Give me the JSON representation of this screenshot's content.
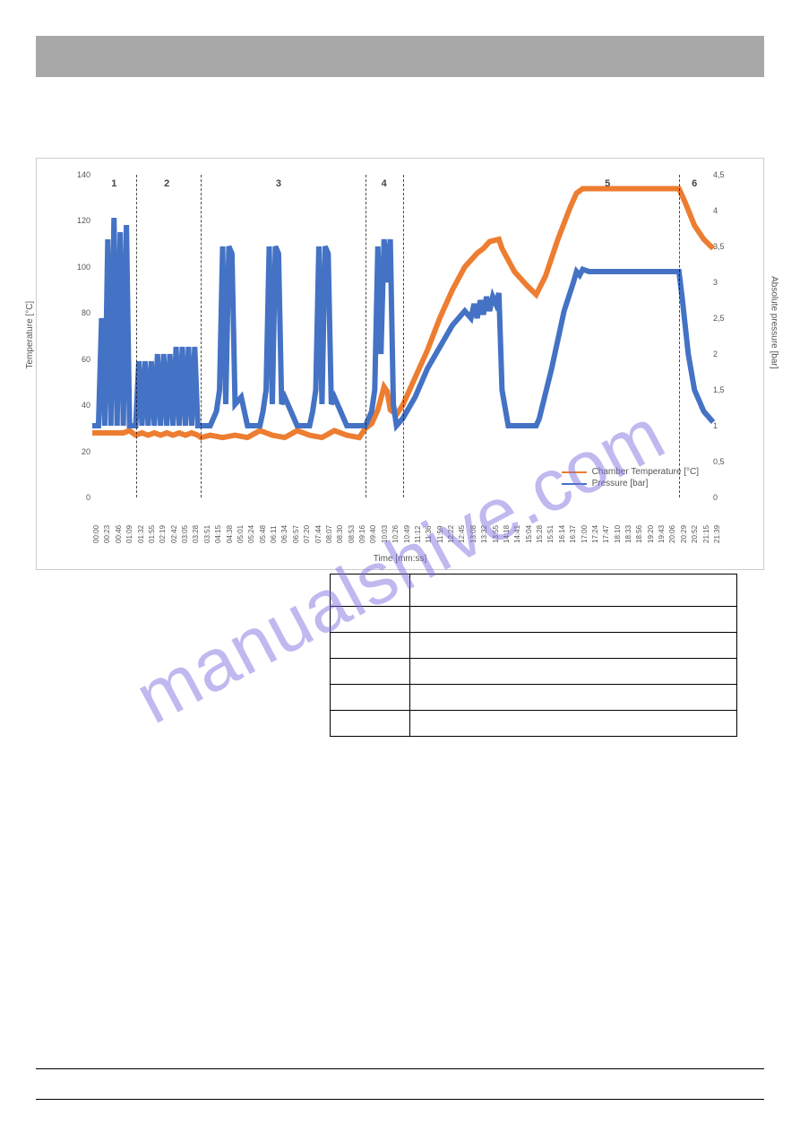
{
  "chart": {
    "title": "",
    "y_left_label": "Temperature [°C]",
    "y_right_label": "Absolute pressure [bar]",
    "x_label": "Time [mm:ss]",
    "y_left_ticks": [
      0,
      20,
      40,
      60,
      80,
      100,
      120,
      140
    ],
    "y_left_min": 0,
    "y_left_max": 140,
    "y_right_ticks": [
      0,
      0.5,
      1,
      1.5,
      2,
      2.5,
      3,
      3.5,
      4,
      4.5
    ],
    "y_right_min": 0,
    "y_right_max": 4.5,
    "x_ticks": [
      "00:00",
      "00:23",
      "00:46",
      "01:09",
      "01:32",
      "01:55",
      "02:19",
      "02:42",
      "03:05",
      "03:28",
      "03:51",
      "04:15",
      "04:38",
      "05:01",
      "05:24",
      "05:48",
      "06:11",
      "06:34",
      "06:57",
      "07:20",
      "07:44",
      "08:07",
      "08:30",
      "08:53",
      "09:16",
      "09:40",
      "10:03",
      "10:26",
      "10:49",
      "11:12",
      "11:36",
      "11:59",
      "12:22",
      "12:45",
      "13:08",
      "13:32",
      "13:55",
      "14:18",
      "14:41",
      "15:04",
      "15:28",
      "15:51",
      "16:14",
      "16:37",
      "17:00",
      "17:24",
      "17:47",
      "18:10",
      "18:33",
      "18:56",
      "19:20",
      "19:43",
      "20:06",
      "20:29",
      "20:52",
      "21:15",
      "21:39"
    ],
    "phases": [
      {
        "label": "1",
        "x": 0.035,
        "divider_after": 0.07
      },
      {
        "label": "2",
        "x": 0.12,
        "divider_after": 0.175
      },
      {
        "label": "3",
        "x": 0.3,
        "divider_after": 0.44
      },
      {
        "label": "4",
        "x": 0.47,
        "divider_after": 0.5
      },
      {
        "label": "5",
        "x": 0.83,
        "divider_after": 0.945
      },
      {
        "label": "6",
        "x": 0.97
      }
    ],
    "series": [
      {
        "name": "Chamber Temperature [°C]",
        "color": "#ed7d31",
        "axis": "left",
        "points": [
          [
            0,
            28
          ],
          [
            0.05,
            28
          ],
          [
            0.06,
            29
          ],
          [
            0.07,
            27
          ],
          [
            0.08,
            28
          ],
          [
            0.09,
            27
          ],
          [
            0.1,
            28
          ],
          [
            0.11,
            27
          ],
          [
            0.12,
            28
          ],
          [
            0.13,
            27
          ],
          [
            0.14,
            28
          ],
          [
            0.15,
            27
          ],
          [
            0.16,
            28
          ],
          [
            0.17,
            27
          ],
          [
            0.175,
            26
          ],
          [
            0.19,
            27
          ],
          [
            0.21,
            26
          ],
          [
            0.23,
            27
          ],
          [
            0.25,
            26
          ],
          [
            0.27,
            29
          ],
          [
            0.29,
            27
          ],
          [
            0.31,
            26
          ],
          [
            0.33,
            29
          ],
          [
            0.35,
            27
          ],
          [
            0.37,
            26
          ],
          [
            0.39,
            29
          ],
          [
            0.41,
            27
          ],
          [
            0.43,
            26
          ],
          [
            0.44,
            30
          ],
          [
            0.45,
            32
          ],
          [
            0.46,
            38
          ],
          [
            0.47,
            48
          ],
          [
            0.475,
            46
          ],
          [
            0.48,
            38
          ],
          [
            0.49,
            36
          ],
          [
            0.5,
            40
          ],
          [
            0.52,
            52
          ],
          [
            0.54,
            64
          ],
          [
            0.56,
            78
          ],
          [
            0.58,
            90
          ],
          [
            0.6,
            100
          ],
          [
            0.62,
            106
          ],
          [
            0.63,
            108
          ],
          [
            0.64,
            111
          ],
          [
            0.655,
            112
          ],
          [
            0.66,
            108
          ],
          [
            0.68,
            98
          ],
          [
            0.7,
            92
          ],
          [
            0.715,
            88
          ],
          [
            0.73,
            96
          ],
          [
            0.75,
            112
          ],
          [
            0.77,
            126
          ],
          [
            0.78,
            132
          ],
          [
            0.79,
            134
          ],
          [
            0.945,
            134
          ],
          [
            0.955,
            128
          ],
          [
            0.97,
            118
          ],
          [
            0.985,
            112
          ],
          [
            1,
            108
          ]
        ]
      },
      {
        "name": "Pressure [bar]",
        "color": "#4472c4",
        "axis": "right",
        "points": [
          [
            0,
            1.0
          ],
          [
            0.01,
            1.0
          ],
          [
            0.015,
            2.5
          ],
          [
            0.02,
            1.0
          ],
          [
            0.025,
            3.6
          ],
          [
            0.03,
            1.0
          ],
          [
            0.035,
            3.9
          ],
          [
            0.04,
            1.0
          ],
          [
            0.045,
            3.7
          ],
          [
            0.05,
            1.0
          ],
          [
            0.055,
            3.8
          ],
          [
            0.06,
            1.0
          ],
          [
            0.07,
            1.0
          ],
          [
            0.075,
            1.9
          ],
          [
            0.08,
            1.0
          ],
          [
            0.085,
            1.9
          ],
          [
            0.09,
            1.0
          ],
          [
            0.095,
            1.9
          ],
          [
            0.1,
            1.0
          ],
          [
            0.105,
            2.0
          ],
          [
            0.11,
            1.0
          ],
          [
            0.115,
            2.0
          ],
          [
            0.12,
            1.0
          ],
          [
            0.125,
            2.0
          ],
          [
            0.13,
            1.0
          ],
          [
            0.135,
            2.1
          ],
          [
            0.14,
            1.0
          ],
          [
            0.145,
            2.1
          ],
          [
            0.15,
            1.0
          ],
          [
            0.155,
            2.1
          ],
          [
            0.16,
            1.0
          ],
          [
            0.165,
            2.1
          ],
          [
            0.17,
            1.0
          ],
          [
            0.175,
            1.0
          ],
          [
            0.19,
            1.0
          ],
          [
            0.2,
            1.2
          ],
          [
            0.205,
            1.5
          ],
          [
            0.21,
            3.5
          ],
          [
            0.215,
            1.3
          ],
          [
            0.22,
            3.5
          ],
          [
            0.225,
            3.4
          ],
          [
            0.23,
            1.3
          ],
          [
            0.24,
            1.4
          ],
          [
            0.245,
            1.2
          ],
          [
            0.25,
            1.0
          ],
          [
            0.27,
            1.0
          ],
          [
            0.275,
            1.2
          ],
          [
            0.28,
            1.5
          ],
          [
            0.285,
            3.5
          ],
          [
            0.29,
            1.3
          ],
          [
            0.295,
            3.5
          ],
          [
            0.3,
            3.4
          ],
          [
            0.305,
            1.3
          ],
          [
            0.31,
            1.4
          ],
          [
            0.32,
            1.2
          ],
          [
            0.33,
            1.0
          ],
          [
            0.35,
            1.0
          ],
          [
            0.355,
            1.2
          ],
          [
            0.36,
            1.5
          ],
          [
            0.365,
            3.5
          ],
          [
            0.37,
            1.3
          ],
          [
            0.375,
            3.5
          ],
          [
            0.38,
            3.4
          ],
          [
            0.385,
            1.3
          ],
          [
            0.39,
            1.4
          ],
          [
            0.4,
            1.2
          ],
          [
            0.41,
            1.0
          ],
          [
            0.44,
            1.0
          ],
          [
            0.45,
            1.2
          ],
          [
            0.455,
            1.5
          ],
          [
            0.46,
            3.5
          ],
          [
            0.465,
            2.0
          ],
          [
            0.47,
            3.6
          ],
          [
            0.475,
            3.0
          ],
          [
            0.48,
            3.6
          ],
          [
            0.485,
            1.3
          ],
          [
            0.49,
            1.0
          ],
          [
            0.5,
            1.1
          ],
          [
            0.52,
            1.4
          ],
          [
            0.54,
            1.8
          ],
          [
            0.56,
            2.1
          ],
          [
            0.58,
            2.4
          ],
          [
            0.6,
            2.6
          ],
          [
            0.61,
            2.5
          ],
          [
            0.615,
            2.7
          ],
          [
            0.62,
            2.5
          ],
          [
            0.625,
            2.75
          ],
          [
            0.63,
            2.55
          ],
          [
            0.635,
            2.8
          ],
          [
            0.64,
            2.6
          ],
          [
            0.645,
            2.8
          ],
          [
            0.65,
            2.7
          ],
          [
            0.655,
            2.85
          ],
          [
            0.66,
            1.5
          ],
          [
            0.67,
            1.0
          ],
          [
            0.715,
            1.0
          ],
          [
            0.72,
            1.1
          ],
          [
            0.74,
            1.8
          ],
          [
            0.76,
            2.6
          ],
          [
            0.775,
            3.0
          ],
          [
            0.78,
            3.15
          ],
          [
            0.785,
            3.1
          ],
          [
            0.79,
            3.18
          ],
          [
            0.8,
            3.15
          ],
          [
            0.945,
            3.15
          ],
          [
            0.95,
            2.8
          ],
          [
            0.96,
            2.0
          ],
          [
            0.97,
            1.5
          ],
          [
            0.985,
            1.2
          ],
          [
            1,
            1.05
          ]
        ]
      }
    ]
  },
  "legend": {
    "item1": "Chamber Temperature [°C]",
    "item2": "Pressure [bar]"
  },
  "table": {
    "rows": [
      [
        "",
        ""
      ],
      [
        "",
        ""
      ],
      [
        "",
        ""
      ],
      [
        "",
        ""
      ],
      [
        "",
        ""
      ],
      [
        "",
        ""
      ]
    ],
    "first_row_height": 36
  },
  "watermark": "manualshive.com"
}
